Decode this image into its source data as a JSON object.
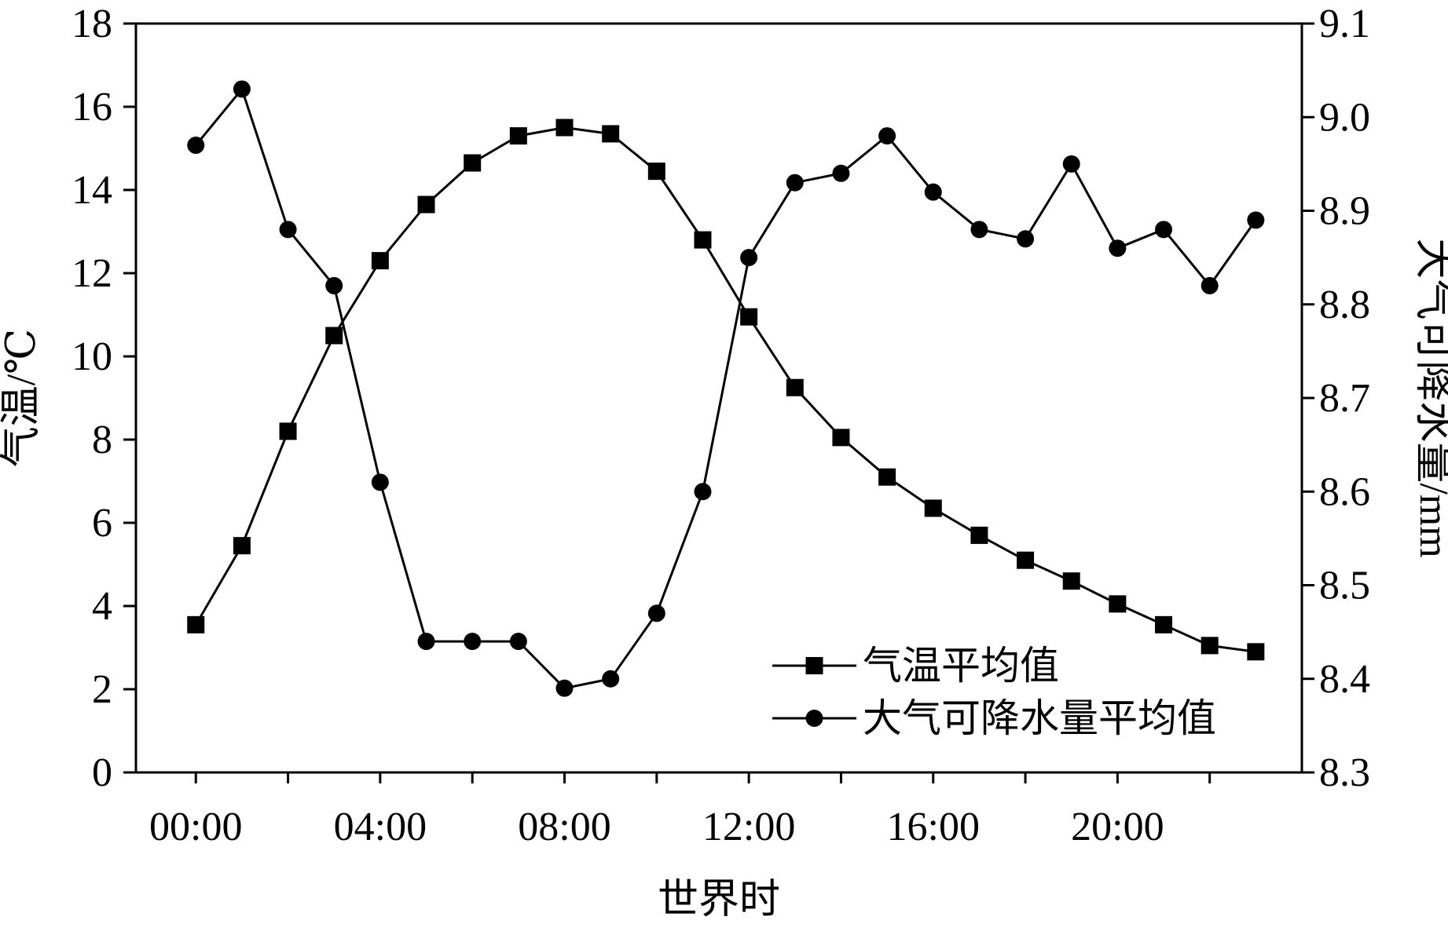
{
  "chart_data": {
    "type": "line",
    "xlabel": "世界时",
    "x_tick_labels": [
      "00:00",
      "04:00",
      "08:00",
      "12:00",
      "16:00",
      "20:00"
    ],
    "x": [
      0,
      1,
      2,
      3,
      4,
      5,
      6,
      7,
      8,
      9,
      10,
      11,
      12,
      13,
      14,
      15,
      16,
      17,
      18,
      19,
      20,
      21,
      22,
      23
    ],
    "xlim": [
      -1.3,
      24
    ],
    "y_left": {
      "label": "气温/℃",
      "lim": [
        0,
        18
      ],
      "ticks": [
        "0",
        "2",
        "4",
        "6",
        "8",
        "10",
        "12",
        "14",
        "16",
        "18"
      ]
    },
    "y_right": {
      "label": "大气可降水量/mm",
      "lim": [
        8.3,
        9.1
      ],
      "ticks": [
        "8.3",
        "8.4",
        "8.5",
        "8.6",
        "8.7",
        "8.8",
        "8.9",
        "9.0",
        "9.1"
      ]
    },
    "series": [
      {
        "name": "气温平均值",
        "axis": "left",
        "marker": "square",
        "color": "#000000",
        "values": [
          3.55,
          5.45,
          8.2,
          10.5,
          12.3,
          13.65,
          14.65,
          15.3,
          15.5,
          15.35,
          14.45,
          12.8,
          10.95,
          9.25,
          8.05,
          7.1,
          6.35,
          5.7,
          5.1,
          4.6,
          4.05,
          3.55,
          3.05,
          2.9
        ]
      },
      {
        "name": "大气可降水量平均值",
        "axis": "right",
        "marker": "circle",
        "color": "#000000",
        "values": [
          8.97,
          9.03,
          8.88,
          8.82,
          8.61,
          8.44,
          8.44,
          8.44,
          8.39,
          8.4,
          8.47,
          8.6,
          8.85,
          8.93,
          8.94,
          8.98,
          8.92,
          8.88,
          8.87,
          8.95,
          8.86,
          8.88,
          8.82,
          8.89
        ]
      }
    ],
    "legend_position": "bottom-right",
    "grid": false
  }
}
